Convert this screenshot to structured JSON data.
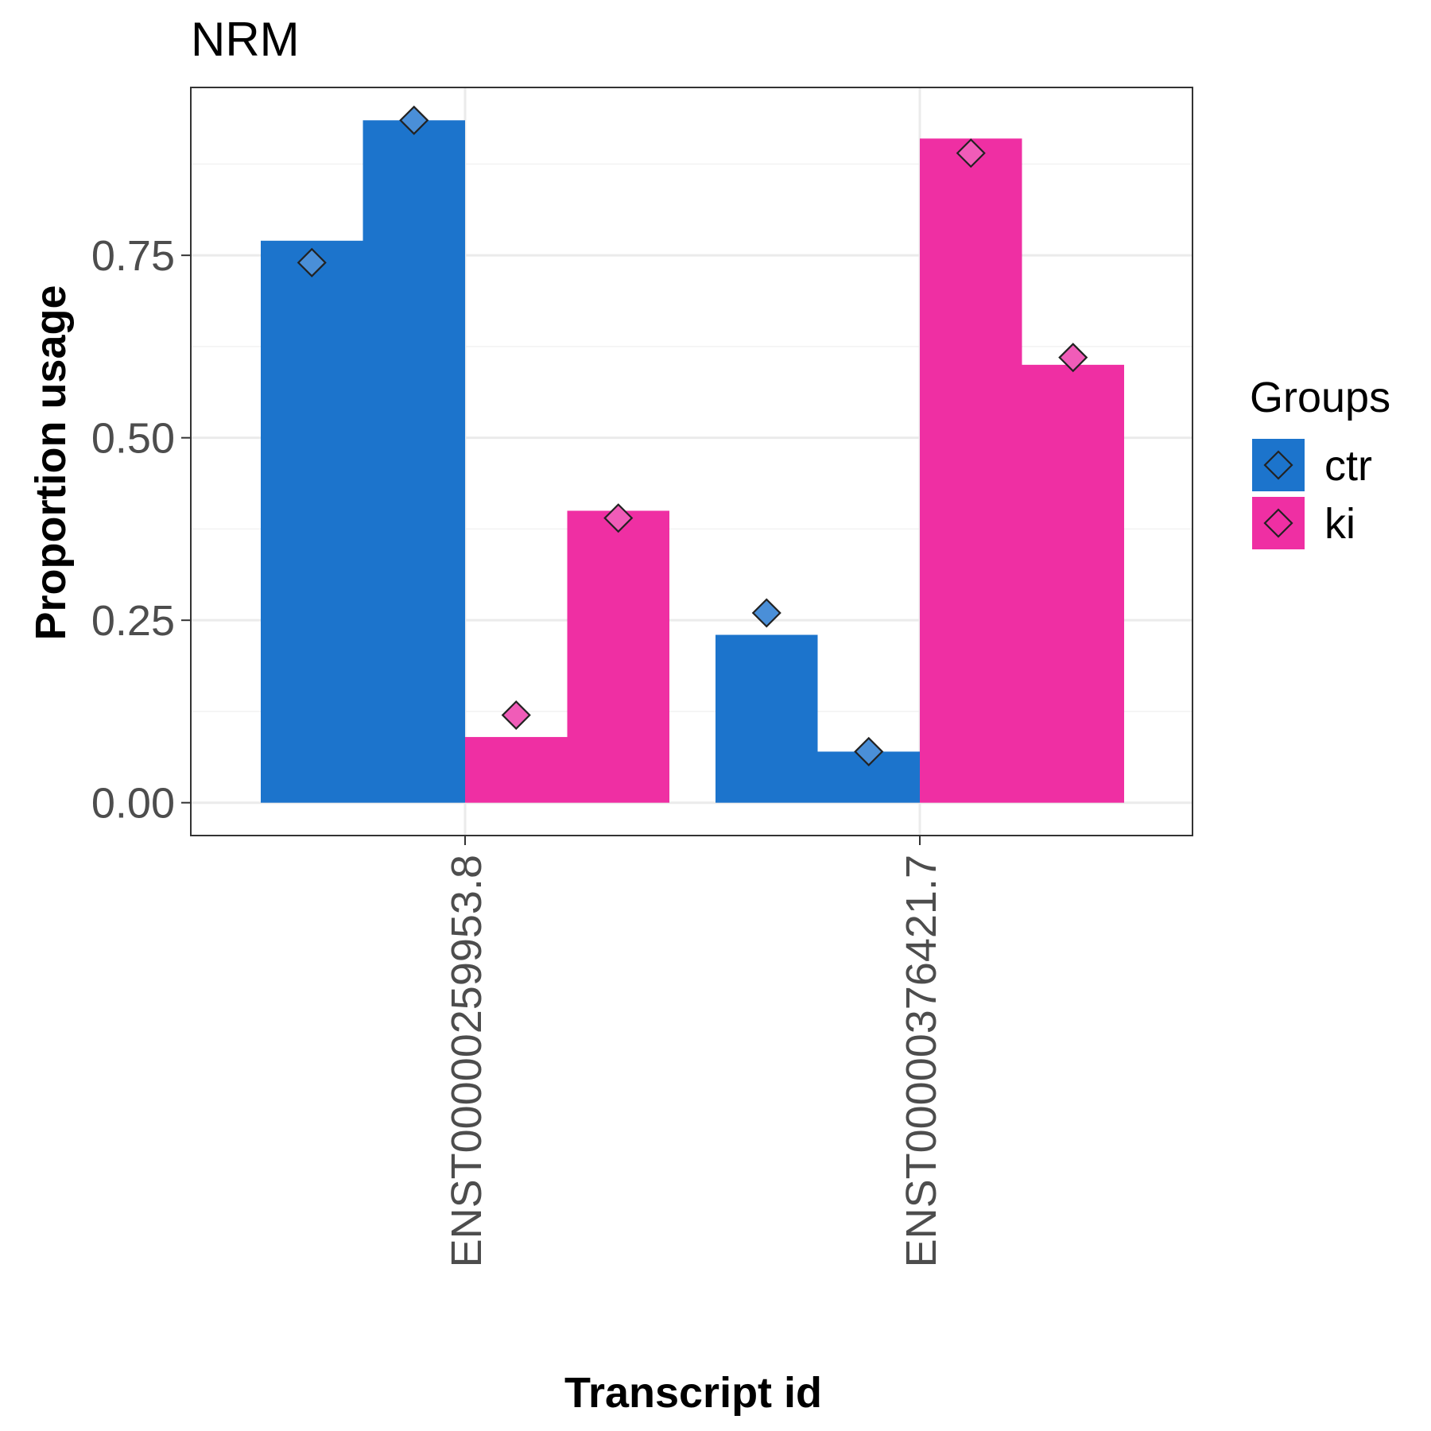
{
  "chart_data": {
    "type": "bar",
    "title": "NRM",
    "xlabel": "Transcript id",
    "ylabel": "Proportion usage",
    "categories": [
      "ENST00000259953.8",
      "ENST00000376421.7"
    ],
    "ylim": [
      -0.045,
      0.98
    ],
    "yticks": [
      0.0,
      0.25,
      0.5,
      0.75
    ],
    "ytick_labels": [
      "0.00",
      "0.25",
      "0.50",
      "0.75"
    ],
    "grid": true,
    "legend": {
      "title": "Groups",
      "position": "right",
      "entries": [
        {
          "label": "ctr",
          "color": "#1c74cc"
        },
        {
          "label": "ki",
          "color": "#ef2fa3"
        }
      ]
    },
    "bars": [
      {
        "category": "ENST00000259953.8",
        "group": "ctr",
        "replicate": 1,
        "value": 0.77,
        "point": 0.74
      },
      {
        "category": "ENST00000259953.8",
        "group": "ctr",
        "replicate": 2,
        "value": 0.935,
        "point": 0.935
      },
      {
        "category": "ENST00000259953.8",
        "group": "ki",
        "replicate": 1,
        "value": 0.09,
        "point": 0.12
      },
      {
        "category": "ENST00000259953.8",
        "group": "ki",
        "replicate": 2,
        "value": 0.4,
        "point": 0.39
      },
      {
        "category": "ENST00000376421.7",
        "group": "ctr",
        "replicate": 1,
        "value": 0.23,
        "point": 0.26
      },
      {
        "category": "ENST00000376421.7",
        "group": "ctr",
        "replicate": 2,
        "value": 0.07,
        "point": 0.07
      },
      {
        "category": "ENST00000376421.7",
        "group": "ki",
        "replicate": 1,
        "value": 0.91,
        "point": 0.89
      },
      {
        "category": "ENST00000376421.7",
        "group": "ki",
        "replicate": 2,
        "value": 0.6,
        "point": 0.61
      }
    ],
    "colors": {
      "ctr": "#1c74cc",
      "ki": "#ef2fa3",
      "ctr_point": "#4a8fd8",
      "ki_point": "#f05cb8",
      "grid_major": "#ebebeb",
      "grid_minor": "#f2f2f2",
      "panel_border": "#333333"
    }
  }
}
